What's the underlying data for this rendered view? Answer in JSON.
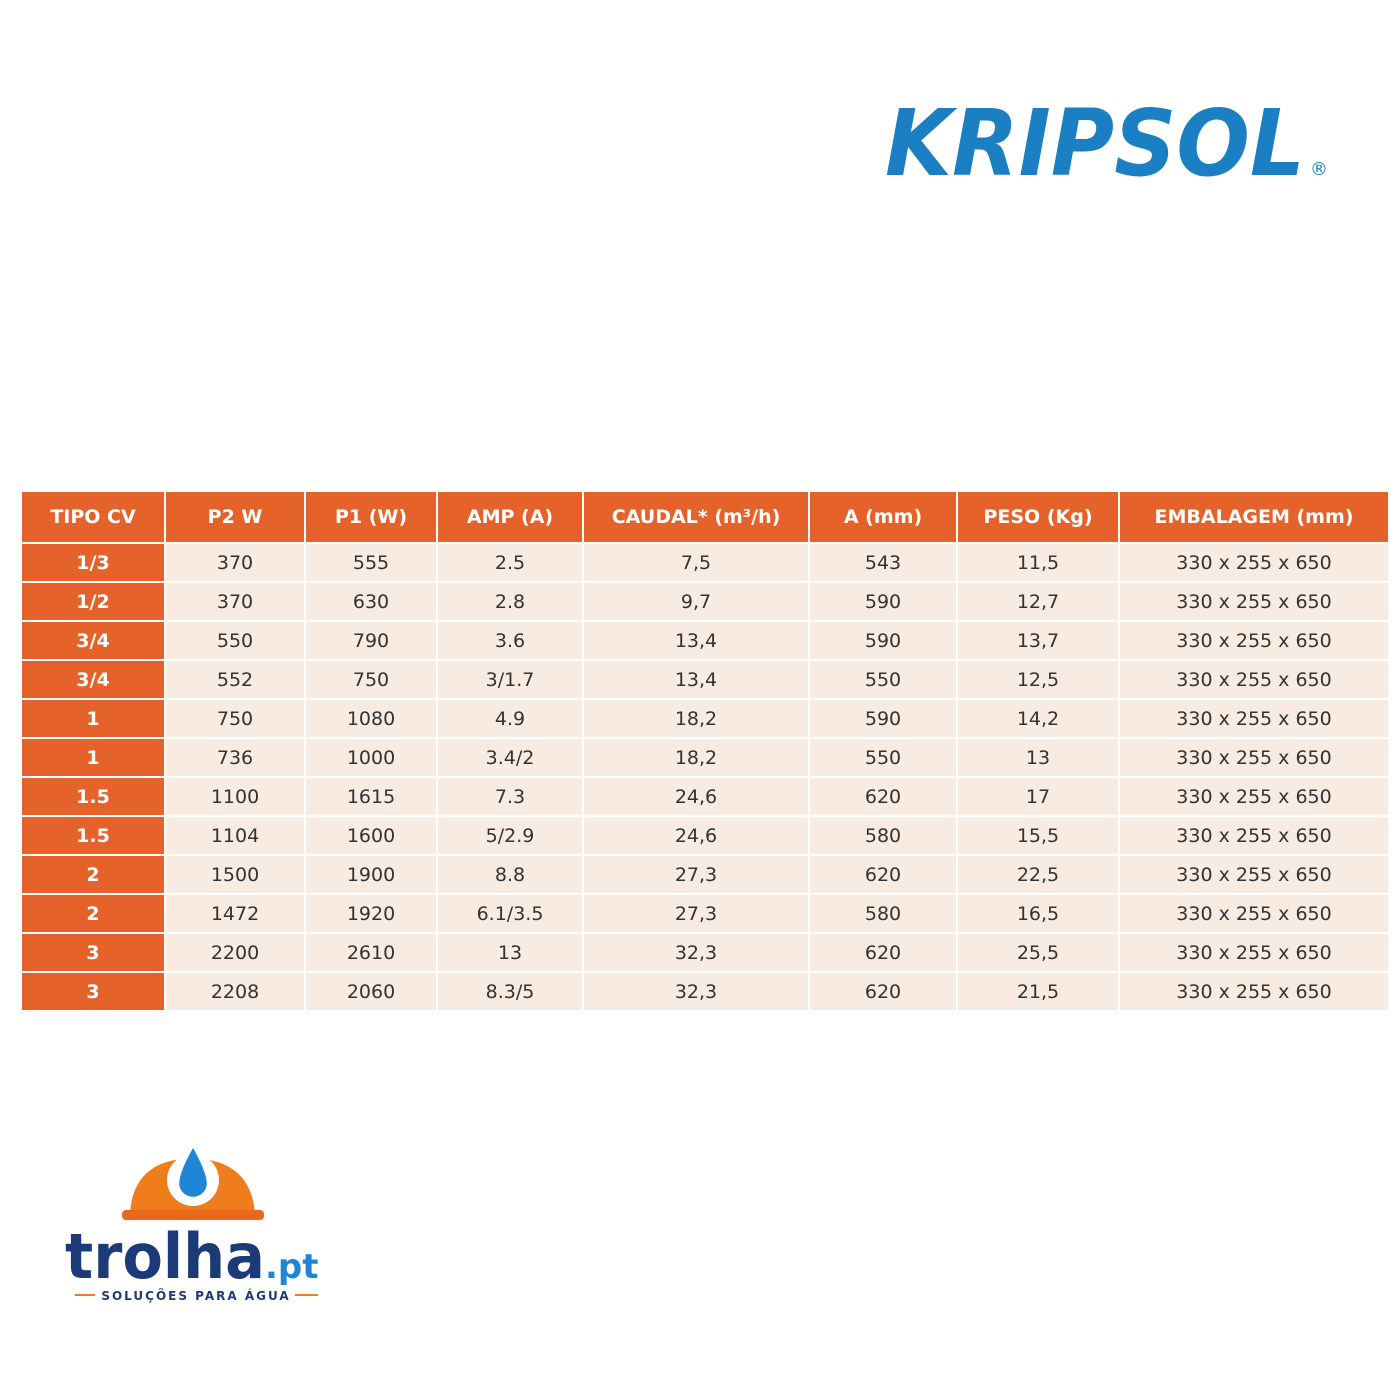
{
  "brand": {
    "name": "KRIPSOL",
    "mark": "®"
  },
  "table": {
    "header": [
      "TIPO CV",
      "P2 W",
      "P1 (W)",
      "AMP (A)",
      "CAUDAL* (m³/h)",
      "A (mm)",
      "PESO (Kg)",
      "EMBALAGEM (mm)"
    ],
    "rows": [
      [
        "1/3",
        "370",
        "555",
        "2.5",
        "7,5",
        "543",
        "11,5",
        "330 x 255 x 650"
      ],
      [
        "1/2",
        "370",
        "630",
        "2.8",
        "9,7",
        "590",
        "12,7",
        "330 x 255 x 650"
      ],
      [
        "3/4",
        "550",
        "790",
        "3.6",
        "13,4",
        "590",
        "13,7",
        "330 x 255 x 650"
      ],
      [
        "3/4",
        "552",
        "750",
        "3/1.7",
        "13,4",
        "550",
        "12,5",
        "330 x 255 x 650"
      ],
      [
        "1",
        "750",
        "1080",
        "4.9",
        "18,2",
        "590",
        "14,2",
        "330 x 255 x 650"
      ],
      [
        "1",
        "736",
        "1000",
        "3.4/2",
        "18,2",
        "550",
        "13",
        "330 x 255 x 650"
      ],
      [
        "1.5",
        "1100",
        "1615",
        "7.3",
        "24,6",
        "620",
        "17",
        "330 x 255 x 650"
      ],
      [
        "1.5",
        "1104",
        "1600",
        "5/2.9",
        "24,6",
        "580",
        "15,5",
        "330 x 255 x 650"
      ],
      [
        "2",
        "1500",
        "1900",
        "8.8",
        "27,3",
        "620",
        "22,5",
        "330 x 255 x 650"
      ],
      [
        "2",
        "1472",
        "1920",
        "6.1/3.5",
        "27,3",
        "580",
        "16,5",
        "330 x 255 x 650"
      ],
      [
        "3",
        "2200",
        "2610",
        "13",
        "32,3",
        "620",
        "25,5",
        "330 x 255 x 650"
      ],
      [
        "3",
        "2208",
        "2060",
        "8.3/5",
        "32,3",
        "620",
        "21,5",
        "330 x 255 x 650"
      ]
    ]
  },
  "footer_logo": {
    "name": "trolha",
    "domain": ".pt",
    "tagline": "SOLUÇÕES PARA ÁGUA"
  }
}
